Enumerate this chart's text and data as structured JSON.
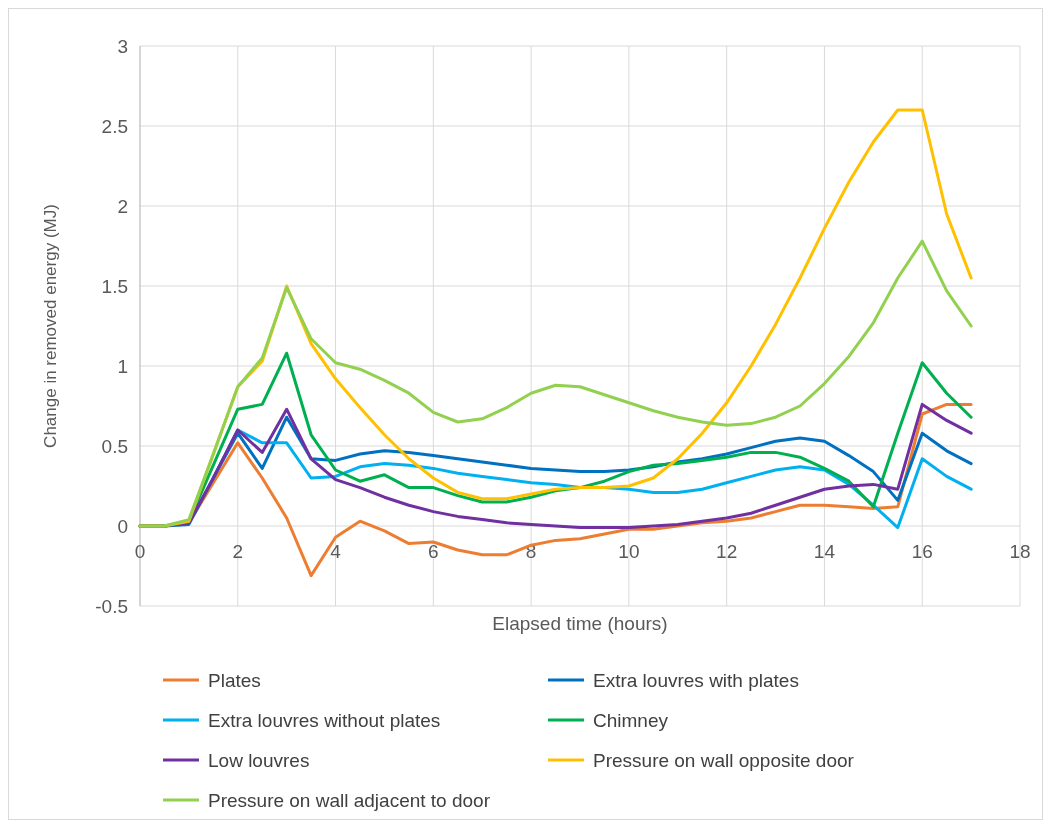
{
  "chart_data": {
    "type": "line",
    "xlabel": "Elapsed time (hours)",
    "ylabel": "Change in removed energy (MJ)",
    "x": [
      0,
      0.5,
      1,
      1.5,
      2,
      2.5,
      3,
      3.5,
      4,
      4.5,
      5,
      5.5,
      6,
      6.5,
      7,
      7.5,
      8,
      8.5,
      9,
      9.5,
      10,
      10.5,
      11,
      11.5,
      12,
      12.5,
      13,
      13.5,
      14,
      14.5,
      15,
      15.5,
      16,
      16.5,
      17
    ],
    "xlim": [
      0,
      18
    ],
    "xticks": [
      0,
      2,
      4,
      6,
      8,
      10,
      12,
      14,
      16,
      18
    ],
    "ylim": [
      -0.5,
      3
    ],
    "yticks": [
      -0.5,
      0,
      0.5,
      1,
      1.5,
      2,
      2.5,
      3
    ],
    "grid": true,
    "legend": "bottom",
    "marker": "none",
    "line_style": "solid",
    "series": [
      {
        "name": "Plates",
        "color": "#ed7d31",
        "values": [
          0,
          0,
          0.02,
          0.27,
          0.52,
          0.3,
          0.05,
          -0.31,
          -0.07,
          0.03,
          -0.03,
          -0.11,
          -0.1,
          -0.15,
          -0.18,
          -0.18,
          -0.12,
          -0.09,
          -0.08,
          -0.05,
          -0.02,
          -0.02,
          0,
          0.02,
          0.03,
          0.05,
          0.09,
          0.13,
          0.13,
          0.12,
          0.11,
          0.12,
          0.7,
          0.76,
          0.76
        ]
      },
      {
        "name": "Extra louvres with plates",
        "color": "#0070c0",
        "values": [
          0,
          0,
          0.01,
          0.3,
          0.58,
          0.36,
          0.68,
          0.42,
          0.41,
          0.45,
          0.47,
          0.46,
          0.44,
          0.42,
          0.4,
          0.38,
          0.36,
          0.35,
          0.34,
          0.34,
          0.35,
          0.37,
          0.4,
          0.42,
          0.45,
          0.49,
          0.53,
          0.55,
          0.53,
          0.44,
          0.34,
          0.16,
          0.58,
          0.47,
          0.39
        ]
      },
      {
        "name": "Extra louvres without plates",
        "color": "#00b0f0",
        "values": [
          null,
          null,
          null,
          0.3,
          0.6,
          0.52,
          0.52,
          0.3,
          0.31,
          0.37,
          0.39,
          0.38,
          0.36,
          0.33,
          0.31,
          0.29,
          0.27,
          0.26,
          0.24,
          0.24,
          0.23,
          0.21,
          0.21,
          0.23,
          0.27,
          0.31,
          0.35,
          0.37,
          0.35,
          0.26,
          0.13,
          -0.01,
          0.42,
          0.31,
          0.23
        ]
      },
      {
        "name": "Chimney",
        "color": "#00b050",
        "values": [
          0,
          0,
          0.03,
          0.38,
          0.73,
          0.76,
          1.08,
          0.57,
          0.35,
          0.28,
          0.32,
          0.24,
          0.24,
          0.19,
          0.15,
          0.15,
          0.18,
          0.22,
          0.24,
          0.28,
          0.34,
          0.38,
          0.39,
          0.41,
          0.43,
          0.46,
          0.46,
          0.43,
          0.36,
          0.28,
          0.12,
          0.58,
          1.02,
          0.83,
          0.68
        ]
      },
      {
        "name": "Low louvres",
        "color": "#7030a0",
        "values": [
          0,
          0,
          0.02,
          0.3,
          0.6,
          0.46,
          0.73,
          0.42,
          0.29,
          0.24,
          0.18,
          0.13,
          0.09,
          0.06,
          0.04,
          0.02,
          0.01,
          0,
          -0.01,
          -0.01,
          -0.01,
          0,
          0.01,
          0.03,
          0.05,
          0.08,
          0.13,
          0.18,
          0.23,
          0.25,
          0.26,
          0.23,
          0.76,
          0.66,
          0.58
        ]
      },
      {
        "name": "Pressure on wall opposite door",
        "color": "#ffc000",
        "values": [
          0,
          0,
          0.03,
          0.45,
          0.87,
          1.03,
          1.5,
          1.14,
          0.92,
          0.74,
          0.57,
          0.42,
          0.3,
          0.21,
          0.17,
          0.17,
          0.2,
          0.23,
          0.24,
          0.24,
          0.25,
          0.3,
          0.42,
          0.58,
          0.77,
          1,
          1.26,
          1.55,
          1.86,
          2.15,
          2.4,
          2.6,
          2.6,
          1.95,
          1.55
        ]
      },
      {
        "name": "Pressure on wall adjacent to door",
        "color": "#92d050",
        "values": [
          0,
          0,
          0.04,
          0.45,
          0.87,
          1.05,
          1.49,
          1.17,
          1.02,
          0.98,
          0.91,
          0.83,
          0.71,
          0.65,
          0.67,
          0.74,
          0.83,
          0.88,
          0.87,
          0.82,
          0.77,
          0.72,
          0.68,
          0.65,
          0.63,
          0.64,
          0.68,
          0.75,
          0.89,
          1.06,
          1.27,
          1.55,
          1.78,
          1.47,
          1.25
        ]
      }
    ]
  }
}
